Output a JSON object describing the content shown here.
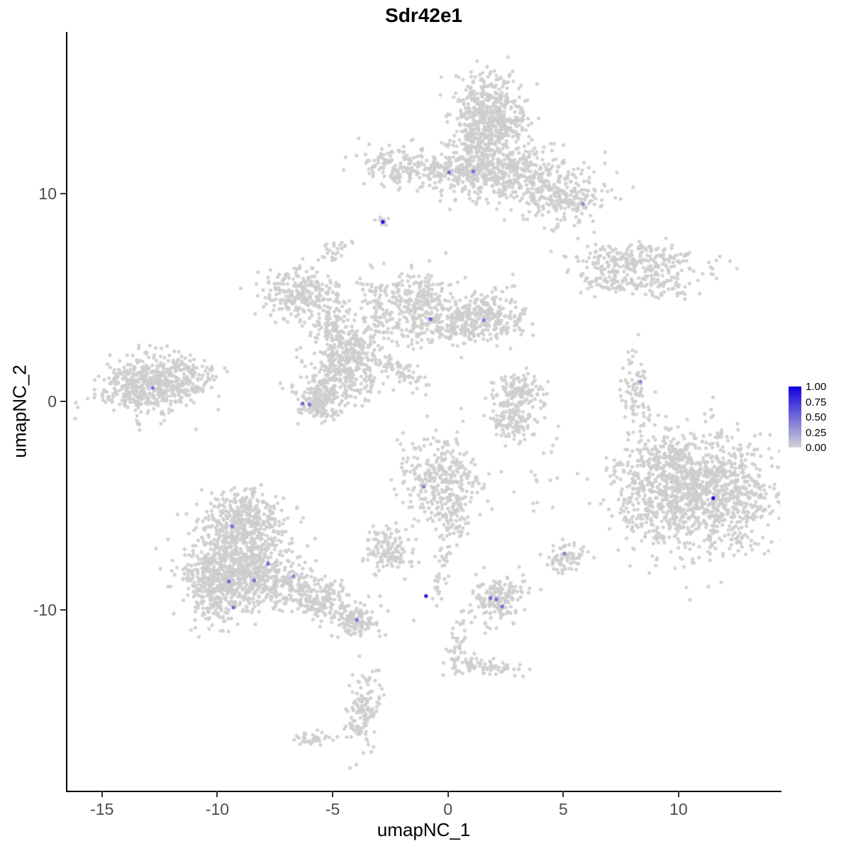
{
  "chart_data": {
    "type": "scatter",
    "title": "Sdr42e1",
    "xlabel": "umapNC_1",
    "ylabel": "umapNC_2",
    "xlim": [
      -16.5,
      14.4
    ],
    "ylim": [
      -18.7,
      17.75
    ],
    "x_ticks": {
      "labels": [
        "-15",
        "-10",
        "-5",
        "0",
        "5",
        "10"
      ],
      "values": [
        -15,
        -10,
        -5,
        0,
        5,
        10
      ]
    },
    "y_ticks": {
      "labels": [
        "10",
        "0",
        "-10"
      ],
      "values": [
        10,
        0,
        -10
      ]
    },
    "grid": false,
    "legend_position": "right",
    "legend": {
      "ticks": [
        "1.00",
        "0.75",
        "0.50",
        "0.25",
        "0.00"
      ],
      "values": [
        1.0,
        0.75,
        0.5,
        0.25,
        0.0
      ]
    },
    "colors": {
      "low": "#d3d3d3",
      "high": "#0f00e0",
      "base_point": "#d4d4d4",
      "base_point_edge": "#c3c3c3"
    },
    "point_radius": 2.2,
    "expressing_point_radius": 2.7,
    "seed": 42,
    "clusters": [
      {
        "cx": 1.7,
        "cy": 13.5,
        "sx": 0.8,
        "sy": 1.05,
        "n": 620
      },
      {
        "cx": 2.6,
        "cy": 10.9,
        "sx": 1.6,
        "sy": 0.7,
        "n": 480
      },
      {
        "cx": 5.0,
        "cy": 9.6,
        "sx": 0.9,
        "sy": 0.55,
        "n": 190
      },
      {
        "cx": 0.3,
        "cy": 11.15,
        "sx": 0.7,
        "sy": 0.3,
        "n": 90
      },
      {
        "cx": -2.1,
        "cy": 11.3,
        "sx": 0.85,
        "sy": 0.5,
        "n": 160
      },
      {
        "cx": -2.82,
        "cy": 8.6,
        "sx": 0.18,
        "sy": 0.18,
        "n": 10
      },
      {
        "cx": -4.95,
        "cy": 7.3,
        "sx": 0.35,
        "sy": 0.25,
        "n": 28
      },
      {
        "cx": 8.3,
        "cy": 6.85,
        "sx": 1.5,
        "sy": 0.38,
        "n": 220,
        "rot": -4
      },
      {
        "cx": 7.2,
        "cy": 5.8,
        "sx": 0.8,
        "sy": 0.35,
        "n": 100
      },
      {
        "cx": 9.35,
        "cy": 5.55,
        "sx": 0.55,
        "sy": 0.28,
        "n": 50
      },
      {
        "cx": -6.4,
        "cy": 5.1,
        "sx": 0.85,
        "sy": 0.65,
        "n": 250
      },
      {
        "cx": -5.0,
        "cy": 3.7,
        "sx": 0.5,
        "sy": 0.6,
        "n": 100
      },
      {
        "cx": -4.2,
        "cy": 2.5,
        "sx": 0.6,
        "sy": 0.5,
        "n": 120
      },
      {
        "cx": -4.6,
        "cy": 1.2,
        "sx": 0.85,
        "sy": 0.8,
        "n": 300
      },
      {
        "cx": -5.65,
        "cy": 0.0,
        "sx": 0.45,
        "sy": 0.4,
        "n": 150
      },
      {
        "cx": -3.2,
        "cy": 4.3,
        "sx": 0.45,
        "sy": 0.9,
        "n": 85
      },
      {
        "cx": -1.3,
        "cy": 4.6,
        "sx": 0.75,
        "sy": 0.95,
        "n": 280
      },
      {
        "cx": 1.6,
        "cy": 4.1,
        "sx": 0.85,
        "sy": 0.6,
        "n": 280
      },
      {
        "cx": 0.2,
        "cy": 3.7,
        "sx": 0.7,
        "sy": 0.4,
        "n": 90
      },
      {
        "cx": -2.0,
        "cy": 1.4,
        "sx": 0.9,
        "sy": 0.22,
        "n": 65,
        "rot": -35
      },
      {
        "cx": -13.2,
        "cy": 0.7,
        "sx": 0.95,
        "sy": 0.7,
        "n": 420
      },
      {
        "cx": -11.4,
        "cy": 1.2,
        "sx": 0.7,
        "sy": 0.55,
        "n": 160
      },
      {
        "cx": 3.1,
        "cy": 0.4,
        "sx": 0.55,
        "sy": 0.5,
        "n": 130
      },
      {
        "cx": 2.8,
        "cy": -0.9,
        "sx": 0.5,
        "sy": 0.45,
        "n": 110
      },
      {
        "cx": 8.1,
        "cy": 0.3,
        "sx": 0.28,
        "sy": 1.05,
        "n": 80
      },
      {
        "cx": 11.3,
        "cy": -4.4,
        "sx": 1.55,
        "sy": 1.5,
        "n": 1050
      },
      {
        "cx": 8.7,
        "cy": -4.3,
        "sx": 0.9,
        "sy": 1.3,
        "n": 270
      },
      {
        "cx": 9.6,
        "cy": -2.55,
        "sx": 0.6,
        "sy": 0.45,
        "n": 70
      },
      {
        "cx": -0.4,
        "cy": -3.8,
        "sx": 0.85,
        "sy": 1.0,
        "n": 320
      },
      {
        "cx": 0.3,
        "cy": -5.7,
        "sx": 0.4,
        "sy": 0.5,
        "n": 55
      },
      {
        "cx": -2.6,
        "cy": -7.2,
        "sx": 0.55,
        "sy": 0.5,
        "n": 130
      },
      {
        "cx": -8.8,
        "cy": -5.6,
        "sx": 0.9,
        "sy": 0.7,
        "n": 350
      },
      {
        "cx": -9.0,
        "cy": -7.9,
        "sx": 1.2,
        "sy": 1.0,
        "n": 650
      },
      {
        "cx": -10.1,
        "cy": -9.0,
        "sx": 0.55,
        "sy": 0.85,
        "n": 280
      },
      {
        "cx": -6.2,
        "cy": -9.3,
        "sx": 1.5,
        "sy": 0.5,
        "n": 340,
        "rot": -20
      },
      {
        "cx": -3.95,
        "cy": -10.55,
        "sx": 0.4,
        "sy": 0.3,
        "n": 90
      },
      {
        "cx": 2.25,
        "cy": -9.5,
        "sx": 0.55,
        "sy": 0.55,
        "n": 160
      },
      {
        "cx": 5.1,
        "cy": -7.5,
        "sx": 0.4,
        "sy": 0.45,
        "n": 70
      },
      {
        "cx": -0.3,
        "cy": -8.3,
        "sx": 0.18,
        "sy": 1.0,
        "n": 35,
        "rot": -8
      },
      {
        "cx": 0.45,
        "cy": -11.3,
        "sx": 0.2,
        "sy": 0.9,
        "n": 35,
        "rot": -12
      },
      {
        "cx": 0.75,
        "cy": -12.55,
        "sx": 0.35,
        "sy": 0.25,
        "n": 35
      },
      {
        "cx": 2.0,
        "cy": -12.8,
        "sx": 0.7,
        "sy": 0.18,
        "n": 45
      },
      {
        "cx": -3.65,
        "cy": -14.8,
        "sx": 0.35,
        "sy": 0.85,
        "n": 130
      },
      {
        "cx": -5.8,
        "cy": -16.2,
        "sx": 0.45,
        "sy": 0.15,
        "n": 35
      },
      {
        "cx": 3.8,
        "cy": -3.5,
        "sx": 0.8,
        "sy": 1.5,
        "n": 18
      }
    ],
    "expressing_cells": [
      {
        "x": -2.82,
        "y": 8.62,
        "value": 0.9
      },
      {
        "x": 0.05,
        "y": 11.0,
        "value": 0.5
      },
      {
        "x": 1.1,
        "y": 11.05,
        "value": 0.45
      },
      {
        "x": 5.85,
        "y": 9.5,
        "value": 0.35
      },
      {
        "x": -0.75,
        "y": 3.95,
        "value": 0.55
      },
      {
        "x": 1.55,
        "y": 3.9,
        "value": 0.4
      },
      {
        "x": 8.35,
        "y": 0.95,
        "value": 0.35
      },
      {
        "x": -12.8,
        "y": 0.65,
        "value": 0.45
      },
      {
        "x": -6.3,
        "y": -0.1,
        "value": 0.5
      },
      {
        "x": -6.0,
        "y": -0.15,
        "value": 0.45
      },
      {
        "x": -1.05,
        "y": -4.1,
        "value": 0.4
      },
      {
        "x": 11.5,
        "y": -4.65,
        "value": 0.95
      },
      {
        "x": -9.35,
        "y": -6.0,
        "value": 0.45
      },
      {
        "x": -7.8,
        "y": -7.8,
        "value": 0.5
      },
      {
        "x": -6.7,
        "y": -8.4,
        "value": 0.35
      },
      {
        "x": -9.5,
        "y": -8.65,
        "value": 0.5
      },
      {
        "x": -8.4,
        "y": -8.6,
        "value": 0.45
      },
      {
        "x": -9.3,
        "y": -9.9,
        "value": 0.5
      },
      {
        "x": 5.05,
        "y": -7.3,
        "value": 0.4
      },
      {
        "x": -0.95,
        "y": -9.35,
        "value": 0.85
      },
      {
        "x": 1.85,
        "y": -9.45,
        "value": 0.5
      },
      {
        "x": 2.1,
        "y": -9.5,
        "value": 0.45
      },
      {
        "x": 2.35,
        "y": -9.85,
        "value": 0.45
      },
      {
        "x": -3.95,
        "y": -10.5,
        "value": 0.45
      }
    ]
  }
}
